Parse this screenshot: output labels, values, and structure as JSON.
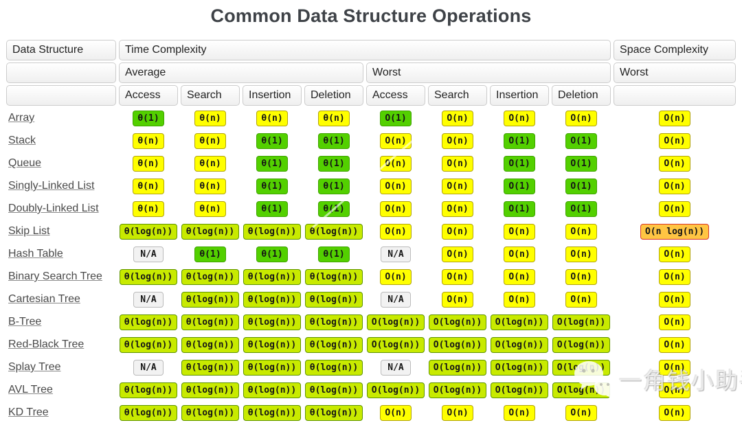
{
  "title": "Common Data Structure Operations",
  "colors": {
    "excellent_green": "#53d000",
    "good_yellow_green": "#c8ea00",
    "fair_yellow": "#ffff00",
    "bad_orange": "#ffc543",
    "bad_border_red": "#d9342b",
    "na_gray": "#f2f2f2",
    "header_border": "#cccccc",
    "title_text": "#3e4247",
    "link_text": "#4a4a4a"
  },
  "table": {
    "headers": {
      "data_structure": "Data Structure",
      "time_complexity": "Time Complexity",
      "space_complexity": "Space Complexity",
      "average": "Average",
      "worst": "Worst",
      "space_worst": "Worst"
    },
    "operation_headers": [
      "Access",
      "Search",
      "Insertion",
      "Deletion",
      "Access",
      "Search",
      "Insertion",
      "Deletion"
    ],
    "rows": [
      {
        "label": "Array",
        "cells": [
          {
            "text": "θ(1)",
            "level": "excellent"
          },
          {
            "text": "θ(n)",
            "level": "fair"
          },
          {
            "text": "θ(n)",
            "level": "fair"
          },
          {
            "text": "θ(n)",
            "level": "fair"
          },
          {
            "text": "O(1)",
            "level": "excellent"
          },
          {
            "text": "O(n)",
            "level": "fair"
          },
          {
            "text": "O(n)",
            "level": "fair"
          },
          {
            "text": "O(n)",
            "level": "fair"
          },
          {
            "text": "O(n)",
            "level": "fair"
          }
        ]
      },
      {
        "label": "Stack",
        "cells": [
          {
            "text": "θ(n)",
            "level": "fair"
          },
          {
            "text": "θ(n)",
            "level": "fair"
          },
          {
            "text": "θ(1)",
            "level": "excellent"
          },
          {
            "text": "θ(1)",
            "level": "excellent"
          },
          {
            "text": "O(n)",
            "level": "fair"
          },
          {
            "text": "O(n)",
            "level": "fair"
          },
          {
            "text": "O(1)",
            "level": "excellent"
          },
          {
            "text": "O(1)",
            "level": "excellent"
          },
          {
            "text": "O(n)",
            "level": "fair"
          }
        ]
      },
      {
        "label": "Queue",
        "cells": [
          {
            "text": "θ(n)",
            "level": "fair"
          },
          {
            "text": "θ(n)",
            "level": "fair"
          },
          {
            "text": "θ(1)",
            "level": "excellent"
          },
          {
            "text": "θ(1)",
            "level": "excellent"
          },
          {
            "text": "O(n)",
            "level": "fair"
          },
          {
            "text": "O(n)",
            "level": "fair"
          },
          {
            "text": "O(1)",
            "level": "excellent"
          },
          {
            "text": "O(1)",
            "level": "excellent"
          },
          {
            "text": "O(n)",
            "level": "fair"
          }
        ]
      },
      {
        "label": "Singly-Linked List",
        "cells": [
          {
            "text": "θ(n)",
            "level": "fair"
          },
          {
            "text": "θ(n)",
            "level": "fair"
          },
          {
            "text": "θ(1)",
            "level": "excellent"
          },
          {
            "text": "θ(1)",
            "level": "excellent"
          },
          {
            "text": "O(n)",
            "level": "fair"
          },
          {
            "text": "O(n)",
            "level": "fair"
          },
          {
            "text": "O(1)",
            "level": "excellent"
          },
          {
            "text": "O(1)",
            "level": "excellent"
          },
          {
            "text": "O(n)",
            "level": "fair"
          }
        ]
      },
      {
        "label": "Doubly-Linked List",
        "cells": [
          {
            "text": "θ(n)",
            "level": "fair"
          },
          {
            "text": "θ(n)",
            "level": "fair"
          },
          {
            "text": "θ(1)",
            "level": "excellent"
          },
          {
            "text": "θ(1)",
            "level": "excellent"
          },
          {
            "text": "O(n)",
            "level": "fair"
          },
          {
            "text": "O(n)",
            "level": "fair"
          },
          {
            "text": "O(1)",
            "level": "excellent"
          },
          {
            "text": "O(1)",
            "level": "excellent"
          },
          {
            "text": "O(n)",
            "level": "fair"
          }
        ]
      },
      {
        "label": "Skip List",
        "cells": [
          {
            "text": "θ(log(n))",
            "level": "good"
          },
          {
            "text": "θ(log(n))",
            "level": "good"
          },
          {
            "text": "θ(log(n))",
            "level": "good"
          },
          {
            "text": "θ(log(n))",
            "level": "good"
          },
          {
            "text": "O(n)",
            "level": "fair"
          },
          {
            "text": "O(n)",
            "level": "fair"
          },
          {
            "text": "O(n)",
            "level": "fair"
          },
          {
            "text": "O(n)",
            "level": "fair"
          },
          {
            "text": "O(n log(n))",
            "level": "bad"
          }
        ]
      },
      {
        "label": "Hash Table",
        "cells": [
          {
            "text": "N/A",
            "level": "na"
          },
          {
            "text": "θ(1)",
            "level": "excellent"
          },
          {
            "text": "θ(1)",
            "level": "excellent"
          },
          {
            "text": "θ(1)",
            "level": "excellent"
          },
          {
            "text": "N/A",
            "level": "na"
          },
          {
            "text": "O(n)",
            "level": "fair"
          },
          {
            "text": "O(n)",
            "level": "fair"
          },
          {
            "text": "O(n)",
            "level": "fair"
          },
          {
            "text": "O(n)",
            "level": "fair"
          }
        ]
      },
      {
        "label": "Binary Search Tree",
        "cells": [
          {
            "text": "θ(log(n))",
            "level": "good"
          },
          {
            "text": "θ(log(n))",
            "level": "good"
          },
          {
            "text": "θ(log(n))",
            "level": "good"
          },
          {
            "text": "θ(log(n))",
            "level": "good"
          },
          {
            "text": "O(n)",
            "level": "fair"
          },
          {
            "text": "O(n)",
            "level": "fair"
          },
          {
            "text": "O(n)",
            "level": "fair"
          },
          {
            "text": "O(n)",
            "level": "fair"
          },
          {
            "text": "O(n)",
            "level": "fair"
          }
        ]
      },
      {
        "label": "Cartesian Tree",
        "cells": [
          {
            "text": "N/A",
            "level": "na"
          },
          {
            "text": "θ(log(n))",
            "level": "good"
          },
          {
            "text": "θ(log(n))",
            "level": "good"
          },
          {
            "text": "θ(log(n))",
            "level": "good"
          },
          {
            "text": "N/A",
            "level": "na"
          },
          {
            "text": "O(n)",
            "level": "fair"
          },
          {
            "text": "O(n)",
            "level": "fair"
          },
          {
            "text": "O(n)",
            "level": "fair"
          },
          {
            "text": "O(n)",
            "level": "fair"
          }
        ]
      },
      {
        "label": "B-Tree",
        "cells": [
          {
            "text": "θ(log(n))",
            "level": "good"
          },
          {
            "text": "θ(log(n))",
            "level": "good"
          },
          {
            "text": "θ(log(n))",
            "level": "good"
          },
          {
            "text": "θ(log(n))",
            "level": "good"
          },
          {
            "text": "O(log(n))",
            "level": "good"
          },
          {
            "text": "O(log(n))",
            "level": "good"
          },
          {
            "text": "O(log(n))",
            "level": "good"
          },
          {
            "text": "O(log(n))",
            "level": "good"
          },
          {
            "text": "O(n)",
            "level": "fair"
          }
        ]
      },
      {
        "label": "Red-Black Tree",
        "cells": [
          {
            "text": "θ(log(n))",
            "level": "good"
          },
          {
            "text": "θ(log(n))",
            "level": "good"
          },
          {
            "text": "θ(log(n))",
            "level": "good"
          },
          {
            "text": "θ(log(n))",
            "level": "good"
          },
          {
            "text": "O(log(n))",
            "level": "good"
          },
          {
            "text": "O(log(n))",
            "level": "good"
          },
          {
            "text": "O(log(n))",
            "level": "good"
          },
          {
            "text": "O(log(n))",
            "level": "good"
          },
          {
            "text": "O(n)",
            "level": "fair"
          }
        ]
      },
      {
        "label": "Splay Tree",
        "cells": [
          {
            "text": "N/A",
            "level": "na"
          },
          {
            "text": "θ(log(n))",
            "level": "good"
          },
          {
            "text": "θ(log(n))",
            "level": "good"
          },
          {
            "text": "θ(log(n))",
            "level": "good"
          },
          {
            "text": "N/A",
            "level": "na"
          },
          {
            "text": "O(log(n))",
            "level": "good"
          },
          {
            "text": "O(log(n))",
            "level": "good"
          },
          {
            "text": "O(log(n))",
            "level": "good"
          },
          {
            "text": "O(n)",
            "level": "fair"
          }
        ]
      },
      {
        "label": "AVL Tree",
        "cells": [
          {
            "text": "θ(log(n))",
            "level": "good"
          },
          {
            "text": "θ(log(n))",
            "level": "good"
          },
          {
            "text": "θ(log(n))",
            "level": "good"
          },
          {
            "text": "θ(log(n))",
            "level": "good"
          },
          {
            "text": "O(log(n))",
            "level": "good"
          },
          {
            "text": "O(log(n))",
            "level": "good"
          },
          {
            "text": "O(log(n))",
            "level": "good"
          },
          {
            "text": "O(log(n))",
            "level": "good"
          },
          {
            "text": "O(n)",
            "level": "fair"
          }
        ]
      },
      {
        "label": "KD Tree",
        "cells": [
          {
            "text": "θ(log(n))",
            "level": "good"
          },
          {
            "text": "θ(log(n))",
            "level": "good"
          },
          {
            "text": "θ(log(n))",
            "level": "good"
          },
          {
            "text": "θ(log(n))",
            "level": "good"
          },
          {
            "text": "O(n)",
            "level": "fair"
          },
          {
            "text": "O(n)",
            "level": "fair"
          },
          {
            "text": "O(n)",
            "level": "fair"
          },
          {
            "text": "O(n)",
            "level": "fair"
          },
          {
            "text": "O(n)",
            "level": "fair"
          }
        ]
      }
    ]
  },
  "watermark": {
    "text": "一角钱小助手",
    "icon": "wechat-chat-bubbles-icon"
  }
}
